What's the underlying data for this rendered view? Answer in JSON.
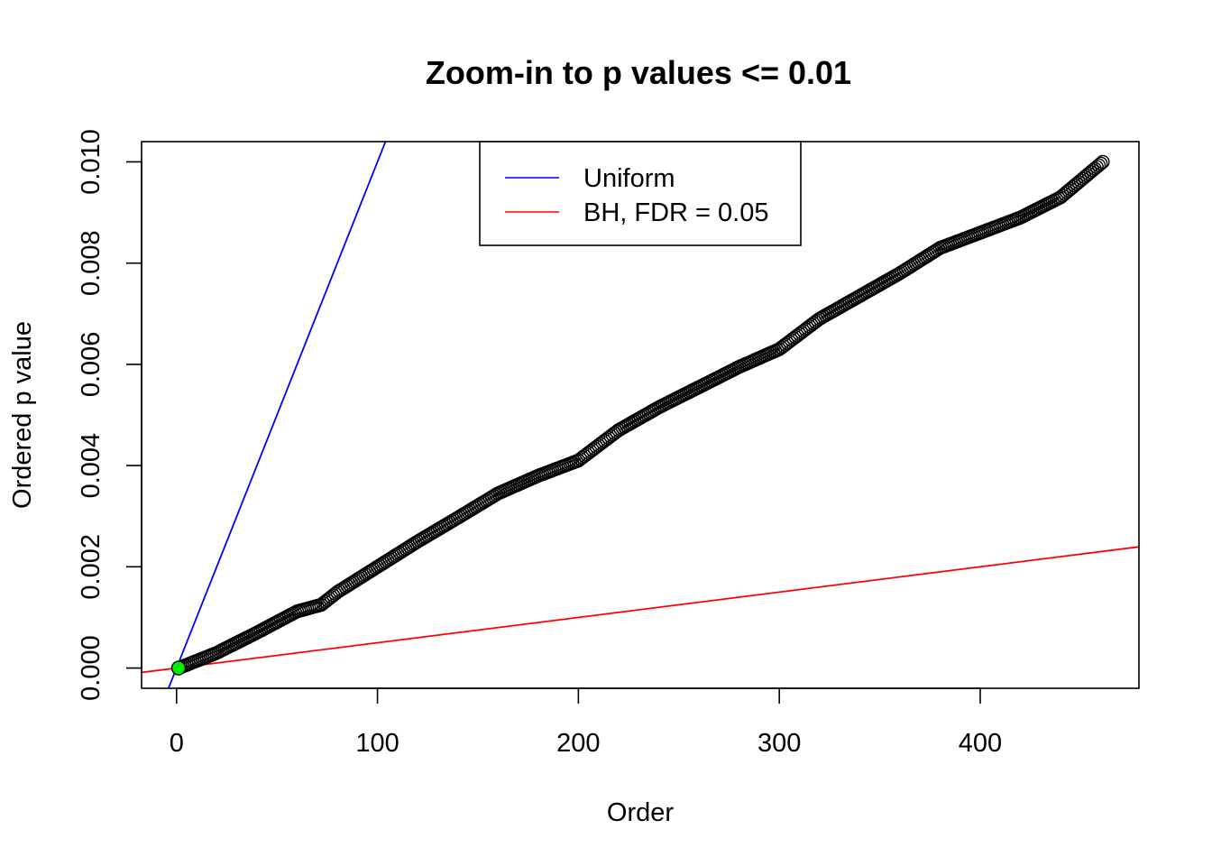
{
  "chart_data": {
    "type": "scatter",
    "title": "Zoom-in to p values <= 0.01",
    "xlabel": "Order",
    "ylabel": "Ordered p value",
    "xlim": [
      -17.4,
      479
    ],
    "ylim": [
      -0.0004,
      0.0104
    ],
    "x_ticks": [
      0,
      100,
      200,
      300,
      400
    ],
    "x_tick_labels": [
      "0",
      "100",
      "200",
      "300",
      "400"
    ],
    "y_ticks": [
      0,
      0.002,
      0.004,
      0.006,
      0.008,
      0.01
    ],
    "y_tick_labels": [
      "0.000",
      "0.002",
      "0.004",
      "0.006",
      "0.008",
      "0.010"
    ],
    "grid": false,
    "legend_position": "top-center",
    "points": {
      "color": "#000000",
      "count": 461,
      "profile": [
        [
          1,
          0.0
        ],
        [
          20,
          0.0003
        ],
        [
          40,
          0.0007
        ],
        [
          60,
          0.00112
        ],
        [
          72,
          0.00125
        ],
        [
          80,
          0.0015
        ],
        [
          100,
          0.002
        ],
        [
          120,
          0.0025
        ],
        [
          140,
          0.00297
        ],
        [
          160,
          0.00345
        ],
        [
          180,
          0.0038
        ],
        [
          200,
          0.0041
        ],
        [
          210,
          0.0044
        ],
        [
          220,
          0.0047
        ],
        [
          240,
          0.00515
        ],
        [
          260,
          0.00555
        ],
        [
          280,
          0.00595
        ],
        [
          300,
          0.0063
        ],
        [
          320,
          0.0069
        ],
        [
          340,
          0.00735
        ],
        [
          360,
          0.0078
        ],
        [
          380,
          0.0083
        ],
        [
          400,
          0.0086
        ],
        [
          420,
          0.0089
        ],
        [
          440,
          0.0093
        ],
        [
          461,
          0.01
        ]
      ]
    },
    "highlight_point": {
      "x": 1,
      "y": 0.0,
      "fill": "#00ee00"
    },
    "lines": [
      {
        "name": "Uniform",
        "color": "#0000ff",
        "intercept": 0,
        "slope": 0.0001
      },
      {
        "name": "BH, FDR = 0.05",
        "color": "#ff0000",
        "intercept": 0,
        "slope": 5e-06
      }
    ]
  }
}
